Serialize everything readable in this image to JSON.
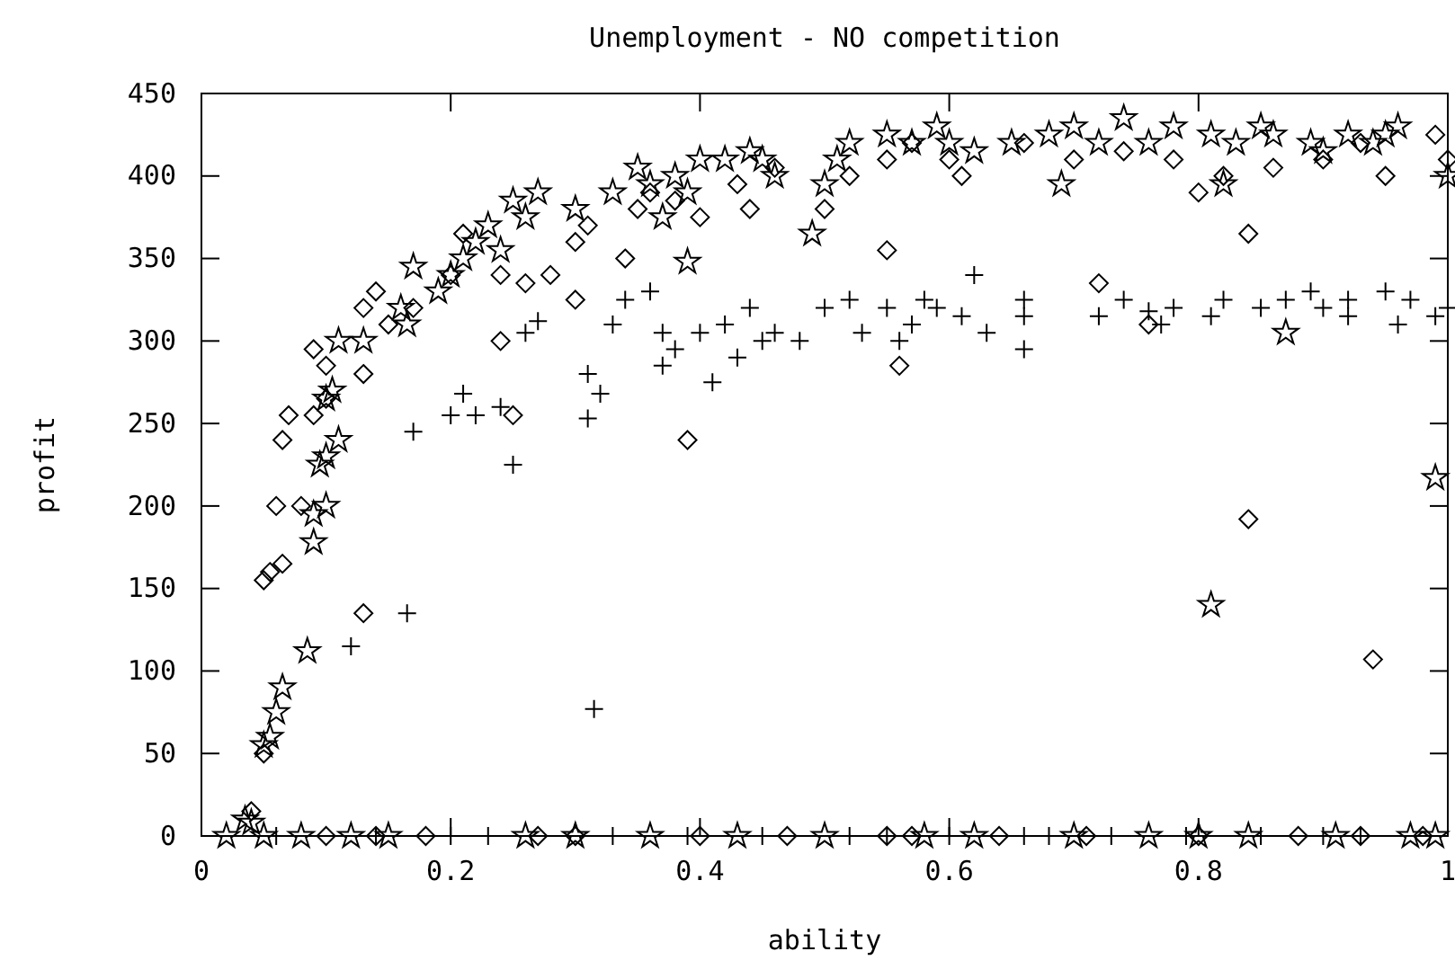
{
  "chart_data": {
    "type": "scatter",
    "title": "Unemployment - NO competition",
    "xlabel": "ability",
    "ylabel": "profit",
    "xlim": [
      0,
      1
    ],
    "ylim": [
      0,
      450
    ],
    "xticks": [
      0,
      {
        "value": 0.2,
        "label": "0.2"
      },
      {
        "value": 0.4,
        "label": "0.4"
      },
      {
        "value": 0.6,
        "label": "0.6"
      },
      {
        "value": 0.8,
        "label": "0.8"
      },
      1
    ],
    "yticks": [
      0,
      50,
      100,
      150,
      200,
      250,
      300,
      350,
      400,
      450
    ],
    "grid": false,
    "series": [
      {
        "color": "#000000",
        "marker": "cross",
        "x": [
          0.12,
          0.165,
          0.17,
          0.2,
          0.21,
          0.22,
          0.24,
          0.25,
          0.26,
          0.27,
          0.31,
          0.31,
          0.32,
          0.315,
          0.33,
          0.34,
          0.36,
          0.37,
          0.37,
          0.38,
          0.4,
          0.41,
          0.42,
          0.43,
          0.44,
          0.45,
          0.46,
          0.48,
          0.5,
          0.52,
          0.53,
          0.55,
          0.56,
          0.57,
          0.58,
          0.59,
          0.61,
          0.62,
          0.63,
          0.66,
          0.66,
          0.66,
          0.72,
          0.74,
          0.76,
          0.77,
          0.78,
          0.81,
          0.82,
          0.85,
          0.87,
          0.89,
          0.9,
          0.92,
          0.92,
          0.95,
          0.96,
          0.97,
          0.99,
          1.0,
          0.06,
          0.14,
          0.2,
          0.23,
          0.33,
          0.39,
          0.45,
          0.52,
          0.55,
          0.6,
          0.66,
          0.68,
          0.73,
          0.79,
          0.85,
          0.9,
          0.93
        ],
        "values": [
          115,
          135,
          245,
          255,
          268,
          255,
          260,
          225,
          305,
          312,
          253,
          280,
          268,
          77,
          310,
          325,
          330,
          285,
          305,
          295,
          305,
          275,
          310,
          290,
          320,
          300,
          305,
          300,
          320,
          325,
          305,
          320,
          300,
          310,
          325,
          320,
          315,
          340,
          305,
          325,
          315,
          295,
          315,
          325,
          318,
          310,
          320,
          315,
          325,
          320,
          325,
          330,
          320,
          325,
          315,
          330,
          310,
          325,
          315,
          320,
          0,
          0,
          0,
          0,
          0,
          0,
          0,
          0,
          0,
          0,
          0,
          0,
          0,
          0,
          0,
          0,
          0
        ]
      },
      {
        "color": "#000000",
        "marker": "star",
        "x": [
          0.035,
          0.04,
          0.05,
          0.055,
          0.06,
          0.065,
          0.085,
          0.09,
          0.09,
          0.095,
          0.1,
          0.1,
          0.1,
          0.105,
          0.11,
          0.11,
          0.13,
          0.16,
          0.165,
          0.17,
          0.19,
          0.2,
          0.21,
          0.22,
          0.23,
          0.24,
          0.25,
          0.26,
          0.27,
          0.3,
          0.33,
          0.35,
          0.36,
          0.37,
          0.38,
          0.39,
          0.39,
          0.4,
          0.42,
          0.44,
          0.45,
          0.46,
          0.49,
          0.5,
          0.51,
          0.52,
          0.55,
          0.57,
          0.59,
          0.6,
          0.62,
          0.65,
          0.68,
          0.69,
          0.7,
          0.72,
          0.74,
          0.76,
          0.78,
          0.81,
          0.81,
          0.82,
          0.83,
          0.85,
          0.86,
          0.87,
          0.89,
          0.9,
          0.92,
          0.94,
          0.95,
          0.96,
          0.99,
          1.0,
          0.02,
          0.05,
          0.08,
          0.12,
          0.15,
          0.26,
          0.3,
          0.36,
          0.43,
          0.5,
          0.58,
          0.62,
          0.7,
          0.76,
          0.8,
          0.84,
          0.91,
          0.97,
          0.99
        ],
        "values": [
          10,
          8,
          55,
          60,
          75,
          90,
          112,
          178,
          195,
          225,
          230,
          200,
          265,
          270,
          300,
          240,
          300,
          320,
          310,
          345,
          330,
          340,
          350,
          360,
          370,
          355,
          385,
          375,
          390,
          380,
          390,
          405,
          395,
          375,
          400,
          390,
          348,
          410,
          410,
          415,
          410,
          400,
          365,
          395,
          410,
          420,
          425,
          420,
          430,
          420,
          415,
          420,
          425,
          395,
          430,
          420,
          435,
          420,
          430,
          425,
          140,
          395,
          420,
          430,
          425,
          305,
          420,
          415,
          425,
          420,
          425,
          430,
          217,
          400,
          0,
          0,
          0,
          0,
          0,
          0,
          0,
          0,
          0,
          0,
          0,
          0,
          0,
          0,
          0,
          0,
          0,
          0,
          0
        ]
      },
      {
        "color": "#000000",
        "marker": "diamond",
        "x": [
          0.04,
          0.05,
          0.05,
          0.055,
          0.06,
          0.065,
          0.065,
          0.07,
          0.08,
          0.09,
          0.09,
          0.1,
          0.1,
          0.13,
          0.13,
          0.13,
          0.14,
          0.15,
          0.17,
          0.2,
          0.21,
          0.24,
          0.24,
          0.25,
          0.26,
          0.28,
          0.3,
          0.3,
          0.31,
          0.34,
          0.35,
          0.36,
          0.38,
          0.39,
          0.4,
          0.43,
          0.44,
          0.46,
          0.5,
          0.52,
          0.55,
          0.55,
          0.56,
          0.57,
          0.6,
          0.61,
          0.66,
          0.7,
          0.72,
          0.74,
          0.76,
          0.78,
          0.8,
          0.82,
          0.84,
          0.84,
          0.86,
          0.9,
          0.93,
          0.94,
          0.95,
          0.99,
          1.0,
          0.1,
          0.14,
          0.18,
          0.27,
          0.3,
          0.4,
          0.47,
          0.55,
          0.57,
          0.64,
          0.71,
          0.8,
          0.88,
          0.93,
          0.98
        ],
        "values": [
          15,
          50,
          155,
          160,
          200,
          165,
          240,
          255,
          200,
          295,
          255,
          285,
          265,
          135,
          320,
          280,
          330,
          310,
          320,
          340,
          365,
          340,
          300,
          255,
          335,
          340,
          325,
          360,
          370,
          350,
          380,
          390,
          385,
          240,
          375,
          395,
          380,
          405,
          380,
          400,
          410,
          355,
          285,
          420,
          410,
          400,
          420,
          410,
          335,
          415,
          310,
          410,
          390,
          400,
          365,
          192,
          405,
          410,
          420,
          107,
          400,
          425,
          410,
          0,
          0,
          0,
          0,
          0,
          0,
          0,
          0,
          0,
          0,
          0,
          0,
          0,
          0,
          0
        ]
      }
    ]
  }
}
